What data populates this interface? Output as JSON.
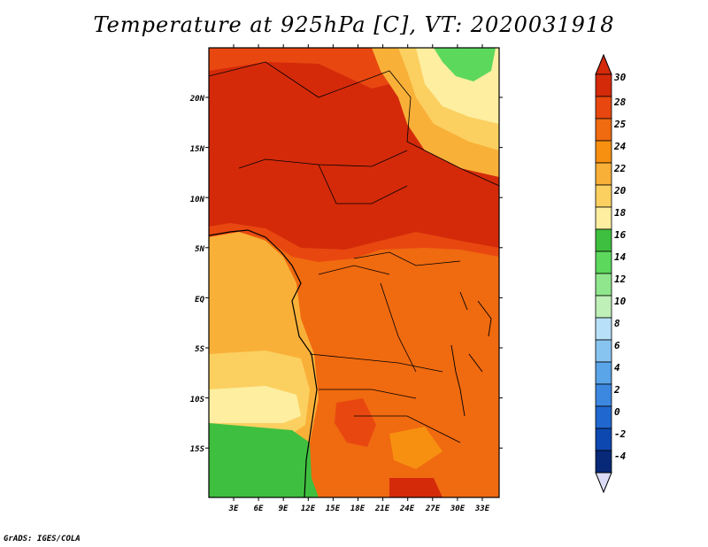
{
  "title": "Temperature at 925hPa [C], VT: 2020031918",
  "footer": "GrADS: IGES/COLA",
  "map": {
    "x_ticks": [
      "3E",
      "6E",
      "9E",
      "12E",
      "15E",
      "18E",
      "21E",
      "24E",
      "27E",
      "30E",
      "33E"
    ],
    "y_ticks": [
      "20N",
      "15N",
      "10N",
      "5N",
      "EQ",
      "5S",
      "10S",
      "15S"
    ]
  },
  "colorbar": {
    "levels": [
      "30",
      "28",
      "25",
      "24",
      "22",
      "20",
      "18",
      "16",
      "14",
      "12",
      "10",
      "8",
      "6",
      "4",
      "2",
      "0",
      "-2",
      "-4"
    ],
    "colors": [
      "#d42a0a",
      "#e84810",
      "#f06a10",
      "#f79010",
      "#f9b038",
      "#fbd060",
      "#fdeea0",
      "#3fbf3f",
      "#5cd85c",
      "#90e68c",
      "#bff0b8",
      "#b8e0f8",
      "#88c4f0",
      "#5aa4e8",
      "#3c88e0",
      "#2068d0",
      "#0d48b0",
      "#082878"
    ],
    "top_color": "#d42a0a",
    "bottom_color": "#dcdcf6"
  }
}
